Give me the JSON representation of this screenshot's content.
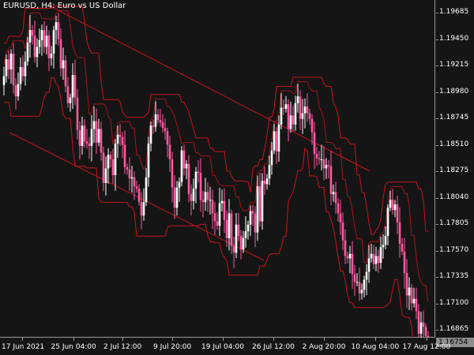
{
  "caption": {
    "symbol": "EURUSD",
    "timeframe": "H4",
    "description": "Euro vs US Dollar"
  },
  "price_axis": {
    "labels": [
      "1.19685",
      "1.19450",
      "1.19215",
      "1.18980",
      "1.18745",
      "1.18510",
      "1.18275",
      "1.18040",
      "1.17805",
      "1.17570",
      "1.17335",
      "1.17100",
      "1.16865"
    ]
  },
  "current_price": "1.16754",
  "time_axis": {
    "labels": [
      "17 Jun 2021",
      "25 Jun 04:00",
      "2 Jul 12:00",
      "9 Jul 20:00",
      "19 Jul 04:00",
      "26 Jul 12:00",
      "2 Aug 20:00",
      "10 Aug 04:00",
      "17 Aug 12:00"
    ]
  },
  "colors": {
    "background": "#151515",
    "bull_candle": "#ffffff",
    "bear_candle": "#ff5aa0",
    "envelope": "#c8141e",
    "channel": "#c8141e"
  },
  "chart_data": {
    "type": "candlestick",
    "ylim": [
      1.166,
      1.1982
    ],
    "price_levels": [
      1.19685,
      1.1945,
      1.19215,
      1.1898,
      1.18745,
      1.1851,
      1.18275,
      1.1804,
      1.17805,
      1.1757,
      1.17335,
      1.171,
      1.16865
    ],
    "close": [
      1.1912,
      1.1927,
      1.1918,
      1.1932,
      1.1904,
      1.1894,
      1.1905,
      1.192,
      1.1912,
      1.1925,
      1.1942,
      1.1953,
      1.1948,
      1.1929,
      1.1938,
      1.1944,
      1.1953,
      1.1938,
      1.1948,
      1.1928,
      1.1932,
      1.1953,
      1.196,
      1.1945,
      1.1919,
      1.1926,
      1.1903,
      1.1888,
      1.1893,
      1.1913,
      1.1893,
      1.1864,
      1.185,
      1.1868,
      1.1854,
      1.1852,
      1.185,
      1.1865,
      1.1872,
      1.1853,
      1.1865,
      1.1844,
      1.1817,
      1.183,
      1.1842,
      1.1838,
      1.1824,
      1.1852,
      1.186,
      1.1858,
      1.1851,
      1.1831,
      1.1829,
      1.1821,
      1.1822,
      1.1814,
      1.1812,
      1.18,
      1.1788,
      1.18,
      1.1822,
      1.1852,
      1.1868,
      1.1867,
      1.1878,
      1.1873,
      1.1871,
      1.1866,
      1.1863,
      1.1851,
      1.1838,
      1.1813,
      1.1795,
      1.1813,
      1.1818,
      1.1846,
      1.183,
      1.1834,
      1.1807,
      1.1801,
      1.1812,
      1.1827,
      1.1826,
      1.1802,
      1.18,
      1.1809,
      1.1802,
      1.1802,
      1.179,
      1.1783,
      1.1779,
      1.1799,
      1.1801,
      1.1784,
      1.1768,
      1.179,
      1.1761,
      1.1755,
      1.178,
      1.177,
      1.1758,
      1.1768,
      1.1774,
      1.178,
      1.1792,
      1.179,
      1.1773,
      1.1814,
      1.1783,
      1.1819,
      1.1816,
      1.1821,
      1.1833,
      1.1846,
      1.1863,
      1.1845,
      1.1869,
      1.1884,
      1.1883,
      1.1887,
      1.1865,
      1.1877,
      1.1869,
      1.1888,
      1.1894,
      1.1874,
      1.1879,
      1.1885,
      1.1879,
      1.1874,
      1.1862,
      1.1843,
      1.1839,
      1.1838,
      1.1838,
      1.183,
      1.1833,
      1.1832,
      1.1807,
      1.1809,
      1.1799,
      1.179,
      1.1782,
      1.1766,
      1.1752,
      1.175,
      1.1754,
      1.1736,
      1.1729,
      1.1729,
      1.1719,
      1.1722,
      1.1731,
      1.1738,
      1.175,
      1.1754,
      1.1745,
      1.1752,
      1.1746,
      1.176,
      1.1762,
      1.177,
      1.1795,
      1.1802,
      1.1793,
      1.1798,
      1.1782,
      1.1763,
      1.1756,
      1.1737,
      1.1717,
      1.1724,
      1.171,
      1.1714,
      1.1703,
      1.1683,
      1.1693,
      1.1689,
      1.1681,
      1.1672
    ]
  }
}
